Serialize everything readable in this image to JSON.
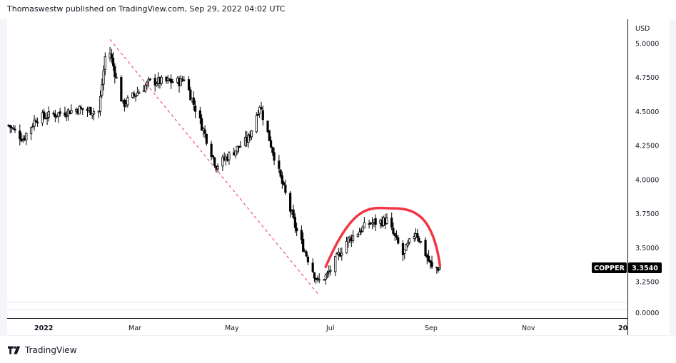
{
  "header": {
    "attribution": "Thomaswestw published on TradingView.com, Sep 29, 2022 04:02 UTC"
  },
  "footer": {
    "brand": "TradingView",
    "logo_icon": "tradingview-logo-icon"
  },
  "colors": {
    "candle_up_fill": "#ffffff",
    "candle_down_fill": "#000000",
    "candle_border": "#000000",
    "trendline": "#f23645",
    "arc": "#f23645",
    "grid_border": "#e0e3eb",
    "axis_line": "#131722",
    "label_bg": "#000000",
    "label_text": "#ffffff"
  },
  "symbol_label": {
    "name": "COPPER",
    "price": "3.3540"
  },
  "chart_data": {
    "type": "candlestick",
    "title": "COPPER",
    "currency": "USD",
    "xlabel": "",
    "ylabel": "USD",
    "y_axis_ticks": [
      "5.0000",
      "4.7500",
      "4.5000",
      "4.2500",
      "4.0000",
      "3.7500",
      "3.5000",
      "3.2500"
    ],
    "lower_pane_ticks": [
      "0.0000"
    ],
    "x_axis_ticks": [
      "2022",
      "Mar",
      "May",
      "Jul",
      "Sep",
      "Nov",
      "20"
    ],
    "ylim": [
      3.1,
      5.15
    ],
    "grid": false,
    "last_price": 3.354,
    "approx_path": [
      {
        "date": "2022-01-03",
        "close": 4.4
      },
      {
        "date": "2022-01-12",
        "close": 4.3
      },
      {
        "date": "2022-01-20",
        "close": 4.45
      },
      {
        "date": "2022-02-01",
        "close": 4.48
      },
      {
        "date": "2022-02-15",
        "close": 4.52
      },
      {
        "date": "2022-02-28",
        "close": 4.5
      },
      {
        "date": "2022-03-04",
        "close": 4.9
      },
      {
        "date": "2022-03-07",
        "close": 4.93
      },
      {
        "date": "2022-03-15",
        "close": 4.55
      },
      {
        "date": "2022-04-01",
        "close": 4.72
      },
      {
        "date": "2022-04-20",
        "close": 4.72
      },
      {
        "date": "2022-04-22",
        "close": 4.75
      },
      {
        "date": "2022-05-06",
        "close": 4.3
      },
      {
        "date": "2022-05-12",
        "close": 4.1
      },
      {
        "date": "2022-06-01",
        "close": 4.3
      },
      {
        "date": "2022-06-08",
        "close": 4.55
      },
      {
        "date": "2022-06-20",
        "close": 4.05
      },
      {
        "date": "2022-07-01",
        "close": 3.62
      },
      {
        "date": "2022-07-14",
        "close": 3.25
      },
      {
        "date": "2022-07-20",
        "close": 3.3
      },
      {
        "date": "2022-08-01",
        "close": 3.55
      },
      {
        "date": "2022-08-15",
        "close": 3.68
      },
      {
        "date": "2022-08-26",
        "close": 3.7
      },
      {
        "date": "2022-09-05",
        "close": 3.45
      },
      {
        "date": "2022-09-13",
        "close": 3.62
      },
      {
        "date": "2022-09-23",
        "close": 3.35
      },
      {
        "date": "2022-09-28",
        "close": 3.354
      }
    ],
    "annotations": [
      {
        "type": "dashed_trendline",
        "color": "#f23645",
        "from": {
          "date": "2022-03-07",
          "price": 5.03
        },
        "to": {
          "date": "2022-07-15",
          "price": 3.15
        }
      },
      {
        "type": "arc",
        "color": "#f23645",
        "from": {
          "date": "2022-07-19",
          "price": 3.36
        },
        "peak": {
          "date": "2022-08-30",
          "price": 3.79
        },
        "to": {
          "date": "2022-09-28",
          "price": 3.37
        }
      }
    ]
  }
}
